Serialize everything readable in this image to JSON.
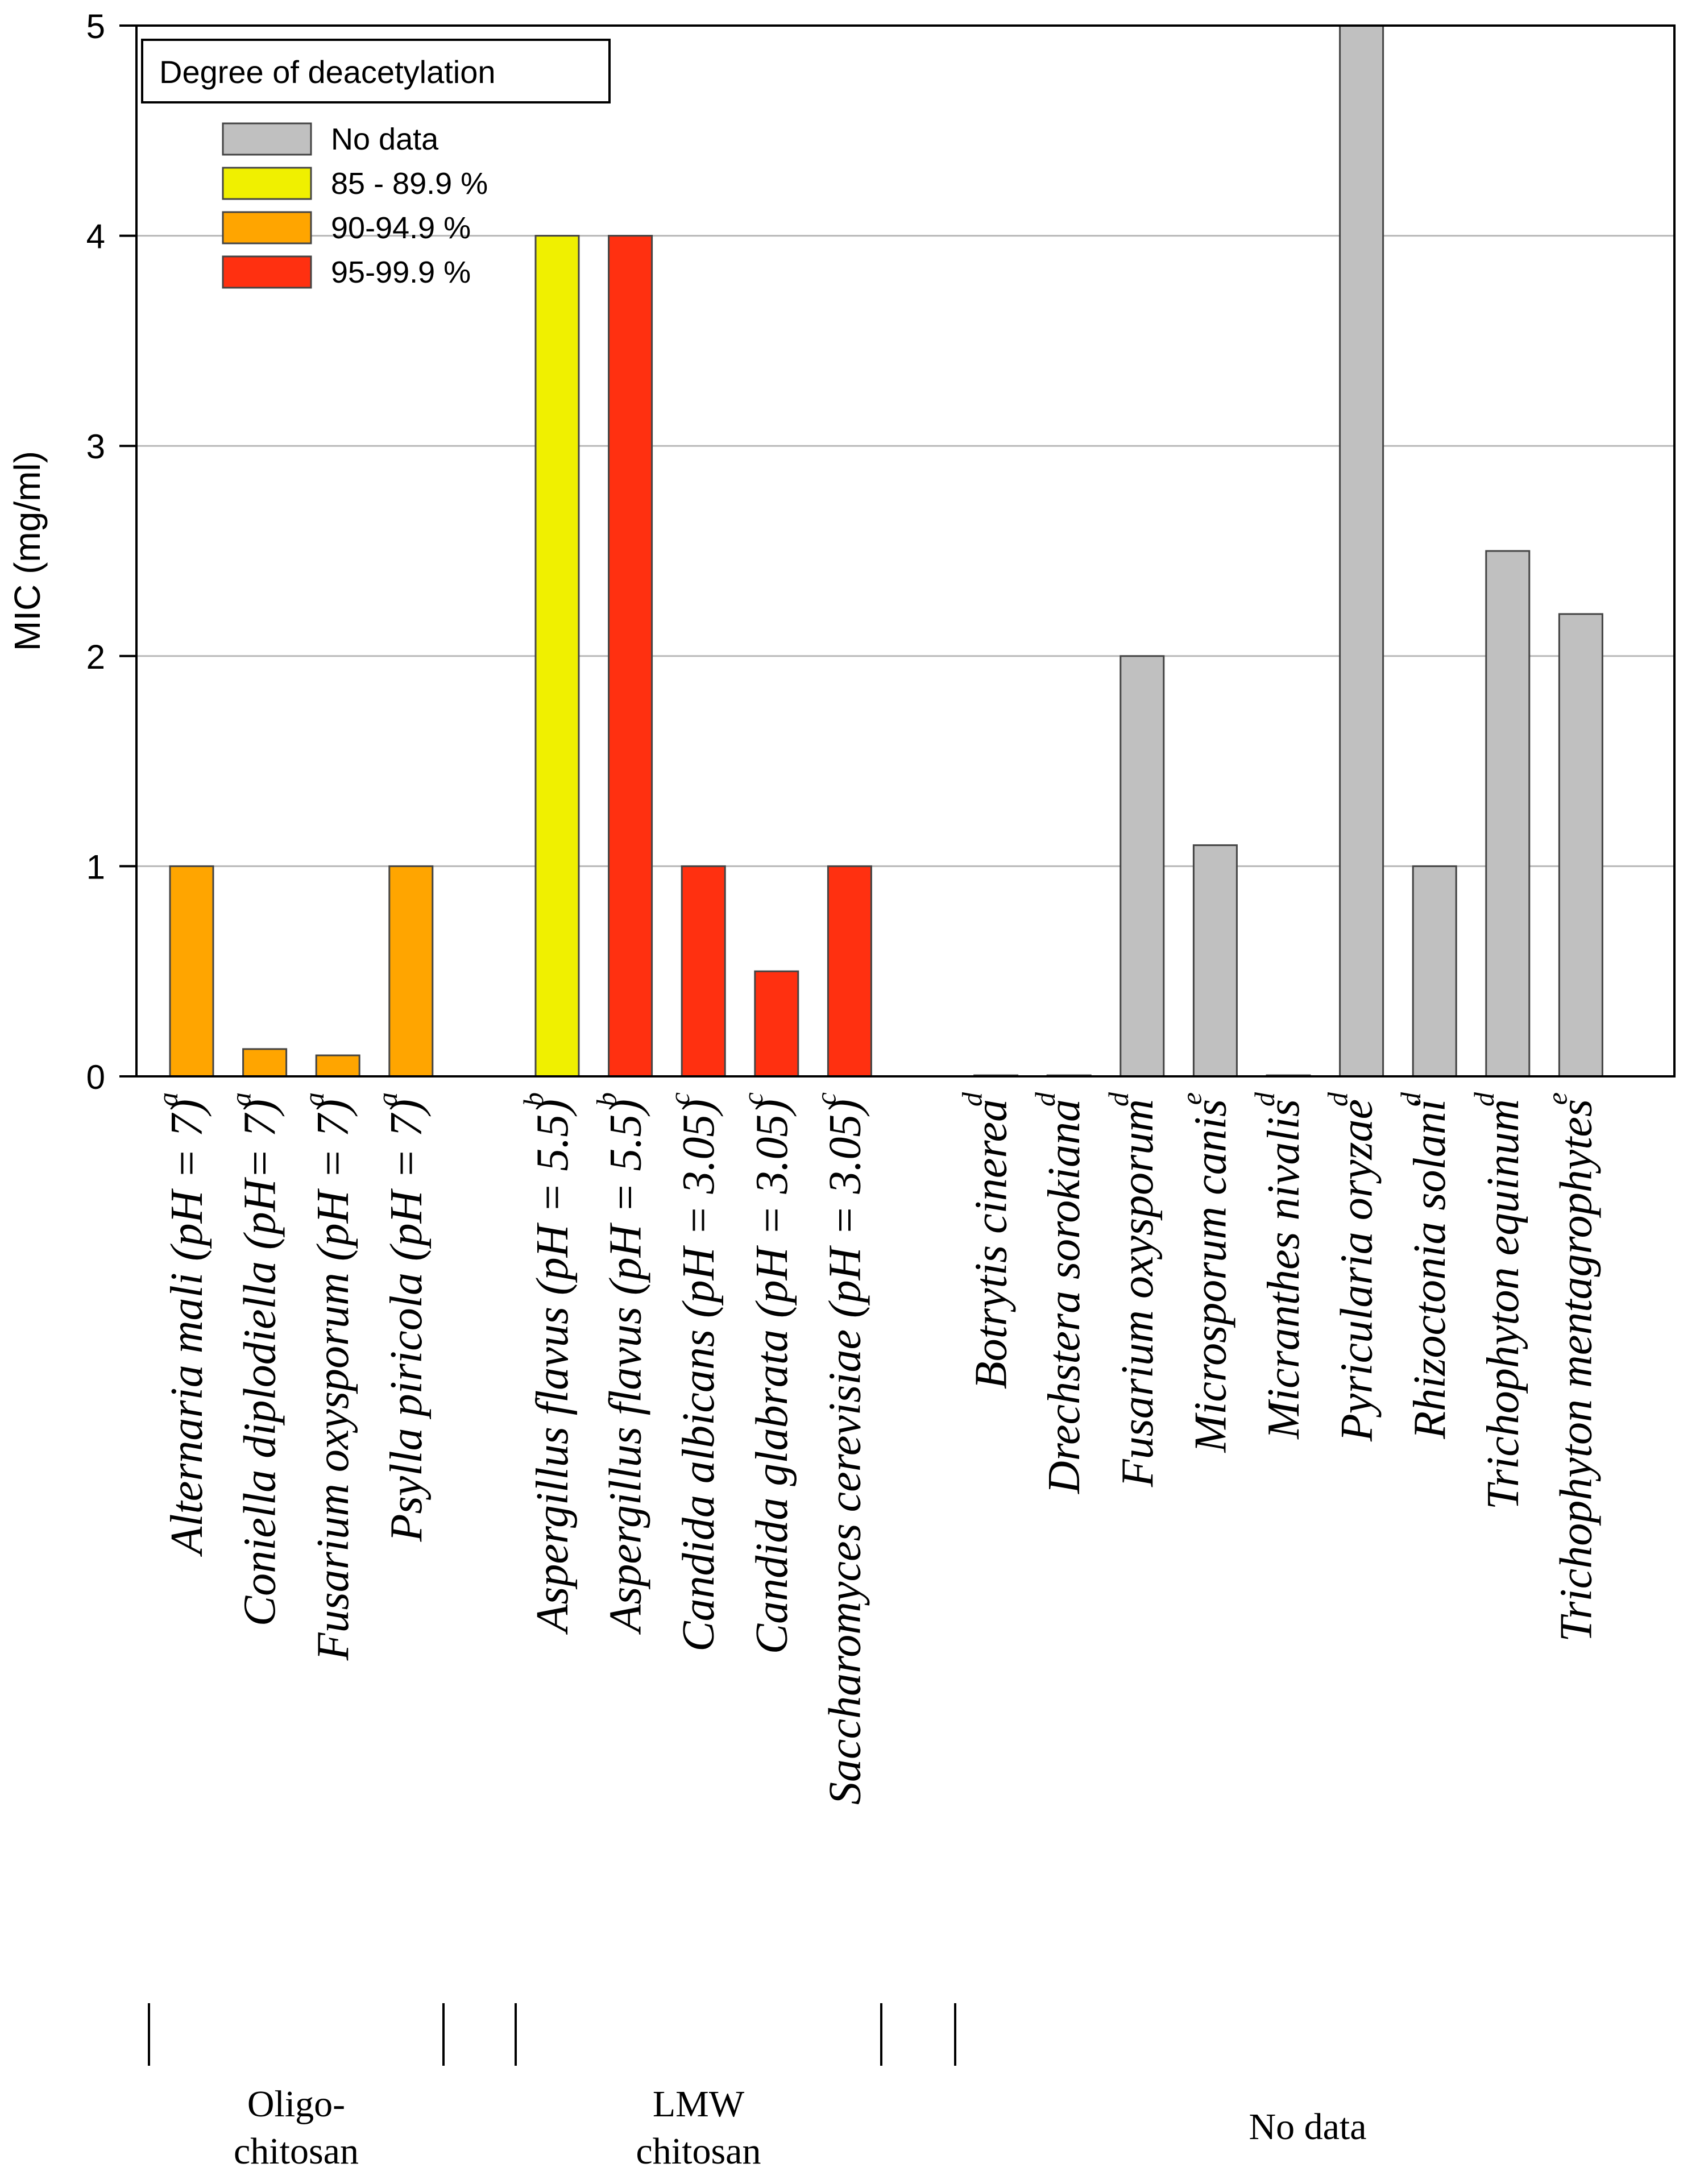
{
  "chart_data": {
    "type": "bar",
    "title": "",
    "xlabel": "",
    "ylabel": "MIC (mg/ml)",
    "ylim": [
      0,
      5
    ],
    "yticks": [
      0,
      1,
      2,
      3,
      4,
      5
    ],
    "grid": "horizontal",
    "legend": {
      "title": "Degree of deacetylation",
      "placement": "top-left",
      "entries": [
        {
          "label": "No data",
          "color": "#c0c0c0"
        },
        {
          "label": "85 - 89.9 %",
          "color": "#f0f000"
        },
        {
          "label": "90-94.9 %",
          "color": "#ffa500"
        },
        {
          "label": "95-99.9 %",
          "color": "#ff3010"
        }
      ]
    },
    "groups": [
      {
        "label_line1": "Oligo-",
        "label_line2": "chitosan",
        "bar_indices": [
          0,
          1,
          2,
          3
        ]
      },
      {
        "label_line1": "LMW",
        "label_line2": "chitosan",
        "bar_indices": [
          4,
          5,
          6,
          7,
          8
        ]
      },
      {
        "label_line1": "No data",
        "label_line2": "",
        "bar_indices": [
          9,
          10,
          11,
          12,
          13,
          14,
          15,
          16,
          17
        ]
      }
    ],
    "bars": [
      {
        "label": "Alternaria mali (pH = 7)",
        "ref": "a",
        "value": 1.0,
        "category": "90-94.9 %"
      },
      {
        "label": "Coniella diplodiella (pH= 7)",
        "ref": "a",
        "value": 0.13,
        "category": "90-94.9 %"
      },
      {
        "label": "Fusarium oxysporum (pH = 7)",
        "ref": "a",
        "value": 0.1,
        "category": "90-94.9 %"
      },
      {
        "label": "Psylla piricola (pH = 7)",
        "ref": "a",
        "value": 1.0,
        "category": "90-94.9 %"
      },
      {
        "label": "Aspergillus flavus (pH = 5.5)",
        "ref": "b",
        "value": 4.0,
        "category": "85 - 89.9 %"
      },
      {
        "label": "Aspergillus flavus (pH = 5.5)",
        "ref": "b",
        "value": 4.0,
        "category": "95-99.9 %"
      },
      {
        "label": "Candida albicans (pH = 3.05)",
        "ref": "c",
        "value": 1.0,
        "category": "95-99.9 %"
      },
      {
        "label": "Candida glabrata (pH = 3.05)",
        "ref": "c",
        "value": 0.5,
        "category": "95-99.9 %"
      },
      {
        "label": "Saccharomyces cerevisiae (pH = 3.05)",
        "ref": "c",
        "value": 1.0,
        "category": "95-99.9 %"
      },
      {
        "label": "Botrytis cinerea",
        "ref": "d",
        "value": 0.005,
        "category": "No data"
      },
      {
        "label": "Drechstera sorokiana",
        "ref": "d",
        "value": 0.005,
        "category": "No data"
      },
      {
        "label": "Fusarium oxysporum",
        "ref": "d",
        "value": 2.0,
        "category": "No data"
      },
      {
        "label": "Microsporum canis",
        "ref": "e",
        "value": 1.1,
        "category": "No data"
      },
      {
        "label": "Micranthes nivalis",
        "ref": "d",
        "value": 0.005,
        "category": "No data"
      },
      {
        "label": "Pyricularia oryzae",
        "ref": "d",
        "value": 5.0,
        "category": "No data"
      },
      {
        "label": "Rhizoctonia solani",
        "ref": "d",
        "value": 1.0,
        "category": "No data"
      },
      {
        "label": "Trichophyton equinum",
        "ref": "d",
        "value": 2.5,
        "category": "No data"
      },
      {
        "label": "Trichophyton mentagrophytes",
        "ref": "e",
        "value": 2.2,
        "category": "No data"
      }
    ]
  }
}
